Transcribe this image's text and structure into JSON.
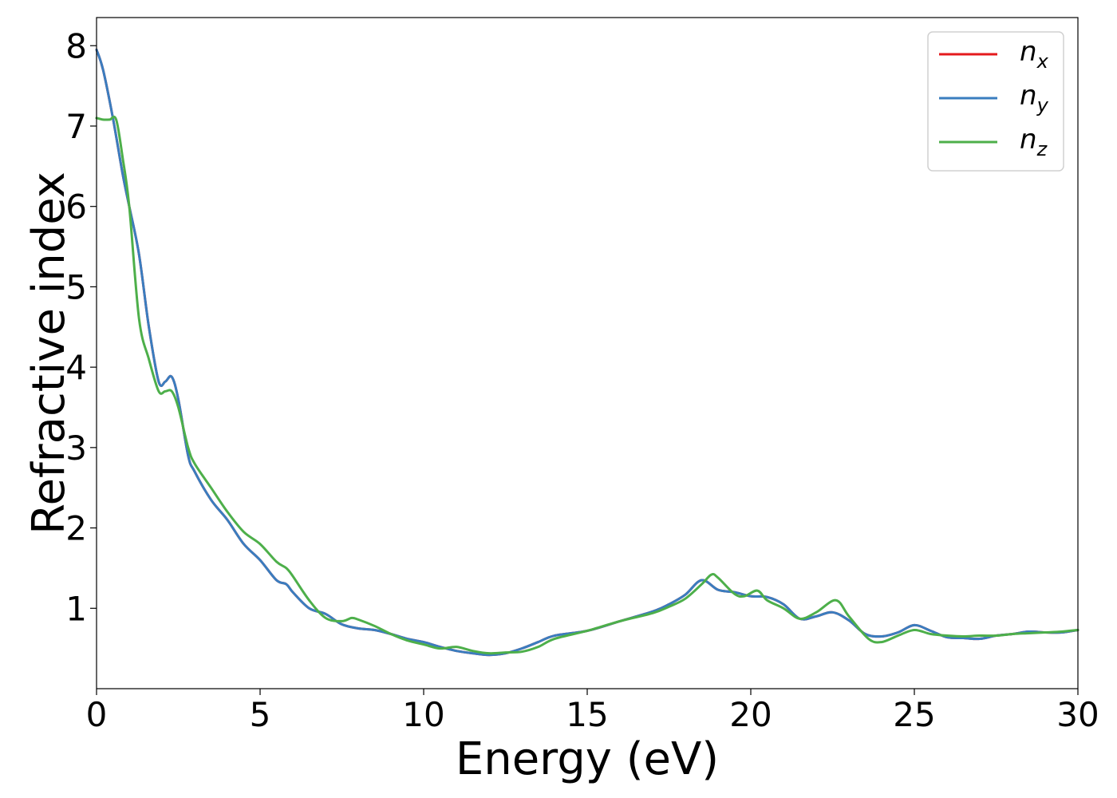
{
  "chart_data": {
    "type": "line",
    "title": "",
    "xlabel": "Energy (eV)",
    "ylabel": "Refractive index",
    "xlim": [
      0,
      30
    ],
    "ylim": [
      0,
      8.35
    ],
    "xticks": [
      0,
      5,
      10,
      15,
      20,
      25,
      30
    ],
    "xtick_labels": [
      "0",
      "5",
      "10",
      "15",
      "20",
      "25",
      "30"
    ],
    "yticks": [
      1,
      2,
      3,
      4,
      5,
      6,
      7,
      8
    ],
    "ytick_labels": [
      "1",
      "2",
      "3",
      "4",
      "5",
      "6",
      "7",
      "8"
    ],
    "grid": false,
    "legend_position": "top-right",
    "series": [
      {
        "name": "n",
        "subscript": "x",
        "color": "#e41a1c",
        "x": [
          0,
          0.2,
          0.5,
          0.8,
          1.0,
          1.3,
          1.6,
          1.9,
          2.1,
          2.3,
          2.5,
          2.8,
          3.0,
          3.5,
          4.0,
          4.5,
          5.0,
          5.5,
          5.8,
          6.0,
          6.5,
          7.0,
          7.5,
          8.0,
          8.5,
          9.0,
          9.5,
          10.0,
          10.5,
          11.0,
          11.5,
          12.0,
          12.5,
          13.0,
          13.5,
          14.0,
          15.0,
          16.0,
          17.0,
          17.5,
          18.0,
          18.5,
          19.0,
          19.5,
          20.0,
          20.5,
          21.0,
          21.5,
          22.0,
          22.5,
          23.0,
          23.5,
          24.0,
          24.5,
          25.0,
          25.5,
          26.0,
          26.5,
          27.0,
          27.5,
          28.0,
          28.5,
          29.0,
          29.5,
          30.0
        ],
        "values": [
          7.95,
          7.7,
          7.1,
          6.4,
          6.0,
          5.4,
          4.5,
          3.82,
          3.82,
          3.88,
          3.6,
          2.9,
          2.7,
          2.35,
          2.1,
          1.8,
          1.6,
          1.35,
          1.3,
          1.2,
          1.0,
          0.93,
          0.8,
          0.75,
          0.73,
          0.68,
          0.62,
          0.58,
          0.52,
          0.47,
          0.44,
          0.42,
          0.44,
          0.5,
          0.58,
          0.66,
          0.72,
          0.84,
          0.96,
          1.05,
          1.17,
          1.35,
          1.23,
          1.2,
          1.15,
          1.14,
          1.05,
          0.87,
          0.9,
          0.95,
          0.85,
          0.68,
          0.65,
          0.7,
          0.79,
          0.72,
          0.64,
          0.63,
          0.62,
          0.66,
          0.68,
          0.71,
          0.7,
          0.7,
          0.73
        ]
      },
      {
        "name": "n",
        "subscript": "y",
        "color": "#3a7dbf",
        "x": [
          0,
          0.2,
          0.5,
          0.8,
          1.0,
          1.3,
          1.6,
          1.9,
          2.1,
          2.3,
          2.5,
          2.8,
          3.0,
          3.5,
          4.0,
          4.5,
          5.0,
          5.5,
          5.8,
          6.0,
          6.5,
          7.0,
          7.5,
          8.0,
          8.5,
          9.0,
          9.5,
          10.0,
          10.5,
          11.0,
          11.5,
          12.0,
          12.5,
          13.0,
          13.5,
          14.0,
          15.0,
          16.0,
          17.0,
          17.5,
          18.0,
          18.5,
          19.0,
          19.5,
          20.0,
          20.5,
          21.0,
          21.5,
          22.0,
          22.5,
          23.0,
          23.5,
          24.0,
          24.5,
          25.0,
          25.5,
          26.0,
          26.5,
          27.0,
          27.5,
          28.0,
          28.5,
          29.0,
          29.5,
          30.0
        ],
        "values": [
          7.95,
          7.7,
          7.1,
          6.4,
          6.0,
          5.4,
          4.5,
          3.82,
          3.82,
          3.88,
          3.6,
          2.9,
          2.7,
          2.35,
          2.1,
          1.8,
          1.6,
          1.35,
          1.3,
          1.2,
          1.0,
          0.93,
          0.8,
          0.75,
          0.73,
          0.68,
          0.62,
          0.58,
          0.52,
          0.47,
          0.44,
          0.42,
          0.44,
          0.5,
          0.58,
          0.66,
          0.72,
          0.84,
          0.96,
          1.05,
          1.17,
          1.35,
          1.23,
          1.2,
          1.15,
          1.14,
          1.05,
          0.87,
          0.9,
          0.95,
          0.85,
          0.68,
          0.65,
          0.7,
          0.79,
          0.72,
          0.64,
          0.63,
          0.62,
          0.66,
          0.68,
          0.71,
          0.7,
          0.7,
          0.73
        ]
      },
      {
        "name": "n",
        "subscript": "z",
        "color": "#4daf4a",
        "x": [
          0,
          0.2,
          0.4,
          0.6,
          0.8,
          1.0,
          1.3,
          1.6,
          1.9,
          2.1,
          2.3,
          2.5,
          2.8,
          3.0,
          3.5,
          4.0,
          4.5,
          5.0,
          5.5,
          5.8,
          6.0,
          6.5,
          7.0,
          7.5,
          7.8,
          8.0,
          8.5,
          9.0,
          9.5,
          10.0,
          10.5,
          11.0,
          11.5,
          12.0,
          12.5,
          13.0,
          13.5,
          14.0,
          15.0,
          16.0,
          17.0,
          17.5,
          18.0,
          18.5,
          18.8,
          19.0,
          19.5,
          19.8,
          20.2,
          20.5,
          21.0,
          21.5,
          22.0,
          22.6,
          23.0,
          23.6,
          24.0,
          24.5,
          25.0,
          25.5,
          26.0,
          26.5,
          27.0,
          27.5,
          28.0,
          28.5,
          29.0,
          29.5,
          30.0
        ],
        "values": [
          7.1,
          7.08,
          7.08,
          7.08,
          6.6,
          6.0,
          4.6,
          4.1,
          3.7,
          3.7,
          3.7,
          3.5,
          3.0,
          2.8,
          2.5,
          2.2,
          1.95,
          1.8,
          1.58,
          1.5,
          1.4,
          1.1,
          0.88,
          0.84,
          0.88,
          0.86,
          0.78,
          0.68,
          0.6,
          0.55,
          0.5,
          0.52,
          0.47,
          0.44,
          0.45,
          0.46,
          0.52,
          0.62,
          0.72,
          0.84,
          0.94,
          1.02,
          1.12,
          1.3,
          1.42,
          1.38,
          1.18,
          1.15,
          1.22,
          1.1,
          1.0,
          0.87,
          0.95,
          1.1,
          0.9,
          0.62,
          0.58,
          0.66,
          0.73,
          0.68,
          0.66,
          0.65,
          0.66,
          0.66,
          0.68,
          0.69,
          0.7,
          0.71,
          0.73
        ]
      }
    ]
  }
}
